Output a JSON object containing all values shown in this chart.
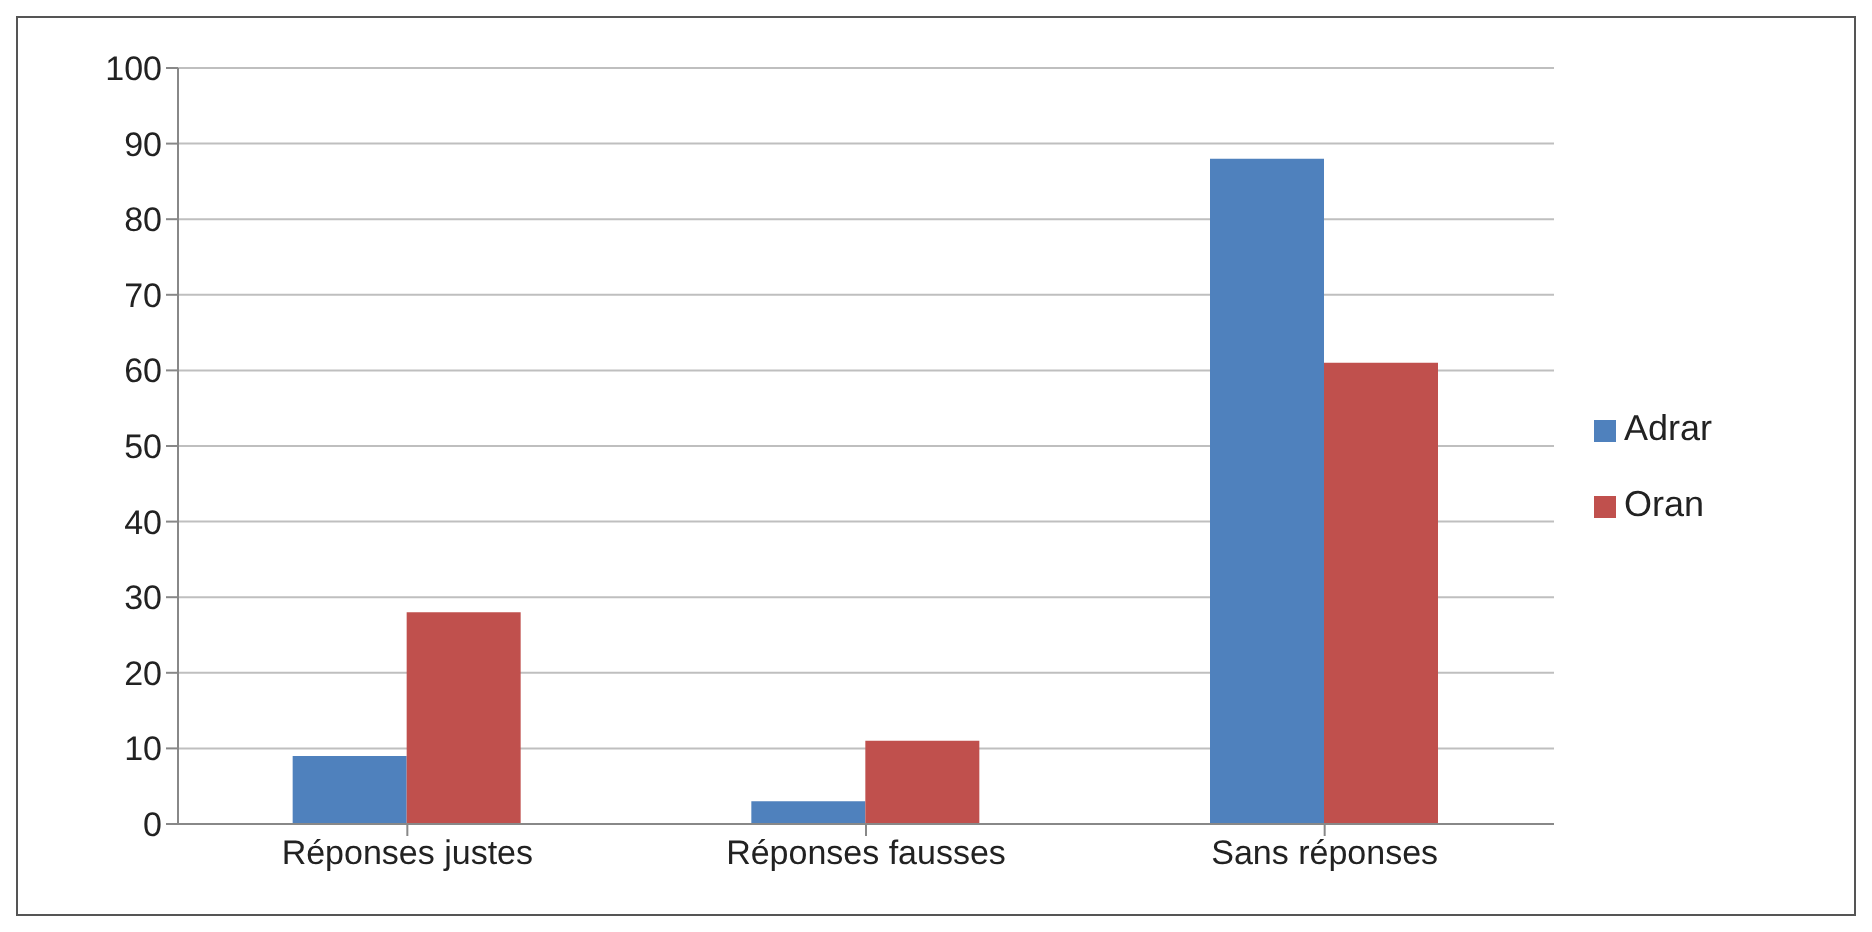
{
  "chart_data": {
    "type": "bar",
    "categories": [
      "Réponses justes",
      "Réponses fausses",
      "Sans réponses"
    ],
    "series": [
      {
        "name": "Adrar",
        "color": "#4f81bd",
        "values": [
          9,
          3,
          88
        ]
      },
      {
        "name": "Oran",
        "color": "#c0504d",
        "values": [
          28,
          11,
          61
        ]
      }
    ],
    "ylim": [
      0,
      100
    ],
    "yticks": [
      0,
      10,
      20,
      30,
      40,
      50,
      60,
      70,
      80,
      90,
      100
    ],
    "grid": "y",
    "legend": "right"
  }
}
